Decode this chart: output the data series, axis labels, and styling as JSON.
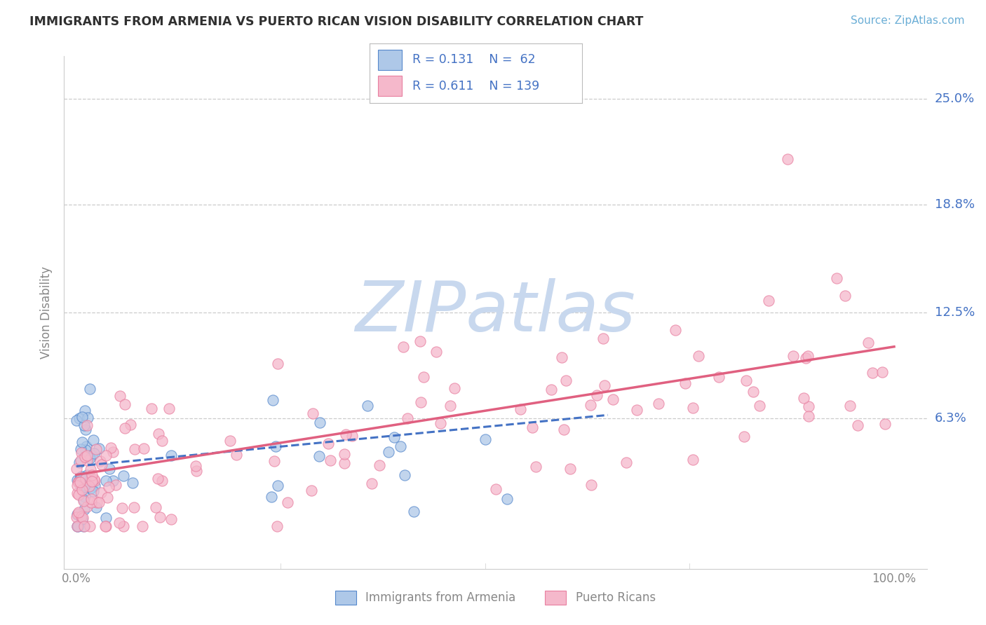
{
  "title": "IMMIGRANTS FROM ARMENIA VS PUERTO RICAN VISION DISABILITY CORRELATION CHART",
  "source": "Source: ZipAtlas.com",
  "ylabel": "Vision Disability",
  "ytick_labels": [
    "25.0%",
    "18.8%",
    "12.5%",
    "6.3%"
  ],
  "ytick_values": [
    0.25,
    0.188,
    0.125,
    0.063
  ],
  "xlim": [
    -0.015,
    1.04
  ],
  "ylim": [
    -0.025,
    0.275
  ],
  "color_blue_fill": "#AEC8E8",
  "color_blue_edge": "#5588CC",
  "color_pink_fill": "#F5B8CB",
  "color_pink_edge": "#E87FA0",
  "color_blue_line": "#4472C4",
  "color_pink_line": "#E06080",
  "color_text_blue": "#4472C4",
  "color_text_axis": "#888888",
  "color_grid": "#CCCCCC",
  "color_title": "#303030",
  "color_source": "#6BAED6",
  "color_watermark": "#C8D8EE",
  "background": "#FFFFFF",
  "legend_box_color": "#DDDDDD",
  "arm_R": "0.131",
  "arm_N": "62",
  "pr_R": "0.611",
  "pr_N": "139"
}
